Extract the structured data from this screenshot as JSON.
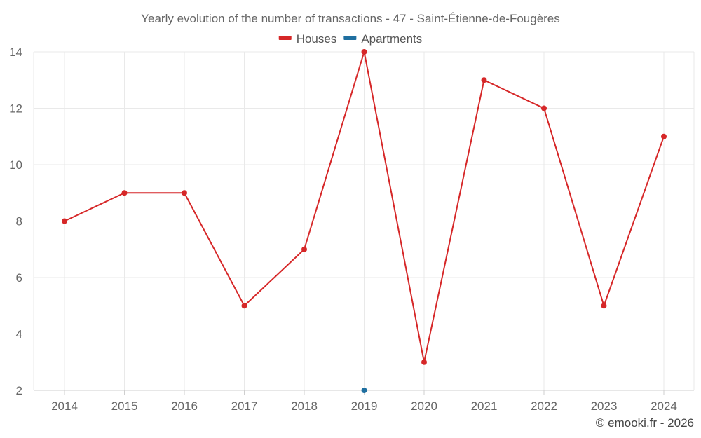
{
  "chart_data": {
    "type": "line",
    "title": "Yearly evolution of the number of transactions - 47 - Saint-Étienne-de-Fougères",
    "x": [
      "2014",
      "2015",
      "2016",
      "2017",
      "2018",
      "2019",
      "2020",
      "2021",
      "2022",
      "2023",
      "2024"
    ],
    "series": [
      {
        "name": "Houses",
        "color": "#d62728",
        "values": [
          8,
          9,
          9,
          5,
          7,
          14,
          3,
          13,
          12,
          5,
          11
        ]
      },
      {
        "name": "Apartments",
        "color": "#1f6fa0",
        "values": [
          null,
          null,
          null,
          null,
          null,
          2,
          null,
          null,
          null,
          null,
          null
        ]
      }
    ],
    "ylim": [
      2,
      14
    ],
    "yticks": [
      "2",
      "4",
      "6",
      "8",
      "10",
      "12",
      "14"
    ],
    "grid": true,
    "legend_position": "top-center"
  },
  "credit": "© emooki.fr - 2026"
}
